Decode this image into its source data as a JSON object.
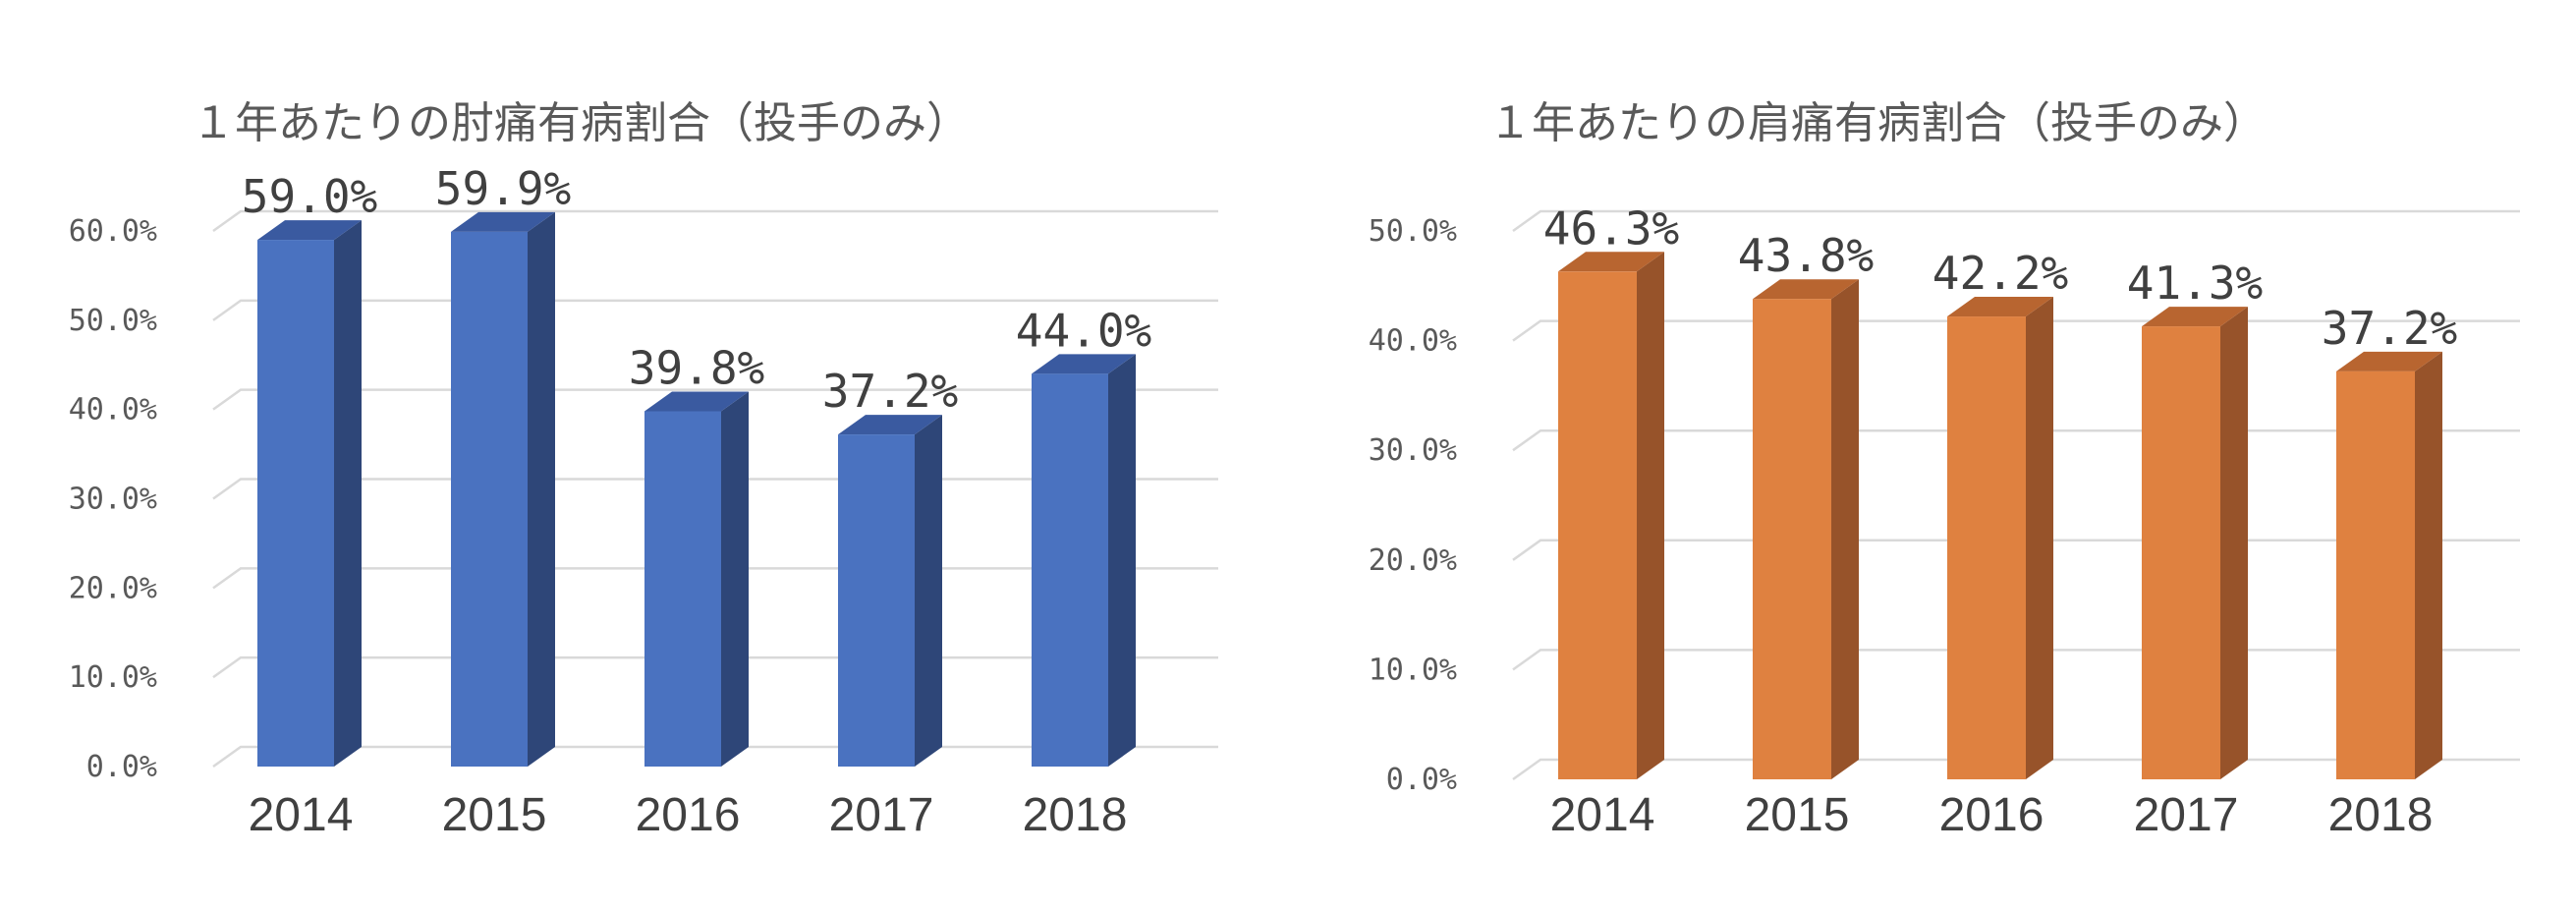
{
  "chart_data": [
    {
      "type": "bar",
      "title": "１年あたりの肘痛有病割合（投手のみ）",
      "categories": [
        "2014",
        "2015",
        "2016",
        "2017",
        "2018"
      ],
      "values": [
        59.0,
        59.9,
        39.8,
        37.2,
        44.0
      ],
      "value_labels": [
        "59.0%",
        "59.9%",
        "39.8%",
        "37.2%",
        "44.0%"
      ],
      "ylim": [
        0,
        60
      ],
      "yticks": [
        "0.0%",
        "10.0%",
        "20.0%",
        "30.0%",
        "40.0%",
        "50.0%",
        "60.0%"
      ],
      "grid": true,
      "bar_style": "3d",
      "color": "#4a72c0",
      "color_side": "#2e4678",
      "color_top": "#3a5aa0"
    },
    {
      "type": "bar",
      "title": "１年あたりの肩痛有病割合（投手のみ）",
      "categories": [
        "2014",
        "2015",
        "2016",
        "2017",
        "2018"
      ],
      "values": [
        46.3,
        43.8,
        42.2,
        41.3,
        37.2
      ],
      "value_labels": [
        "46.3%",
        "43.8%",
        "42.2%",
        "41.3%",
        "37.2%"
      ],
      "ylim": [
        0,
        50
      ],
      "yticks": [
        "0.0%",
        "10.0%",
        "20.0%",
        "30.0%",
        "40.0%",
        "50.0%"
      ],
      "grid": true,
      "bar_style": "3d",
      "color": "#df8140",
      "color_side": "#97532a",
      "color_top": "#b86530"
    }
  ]
}
